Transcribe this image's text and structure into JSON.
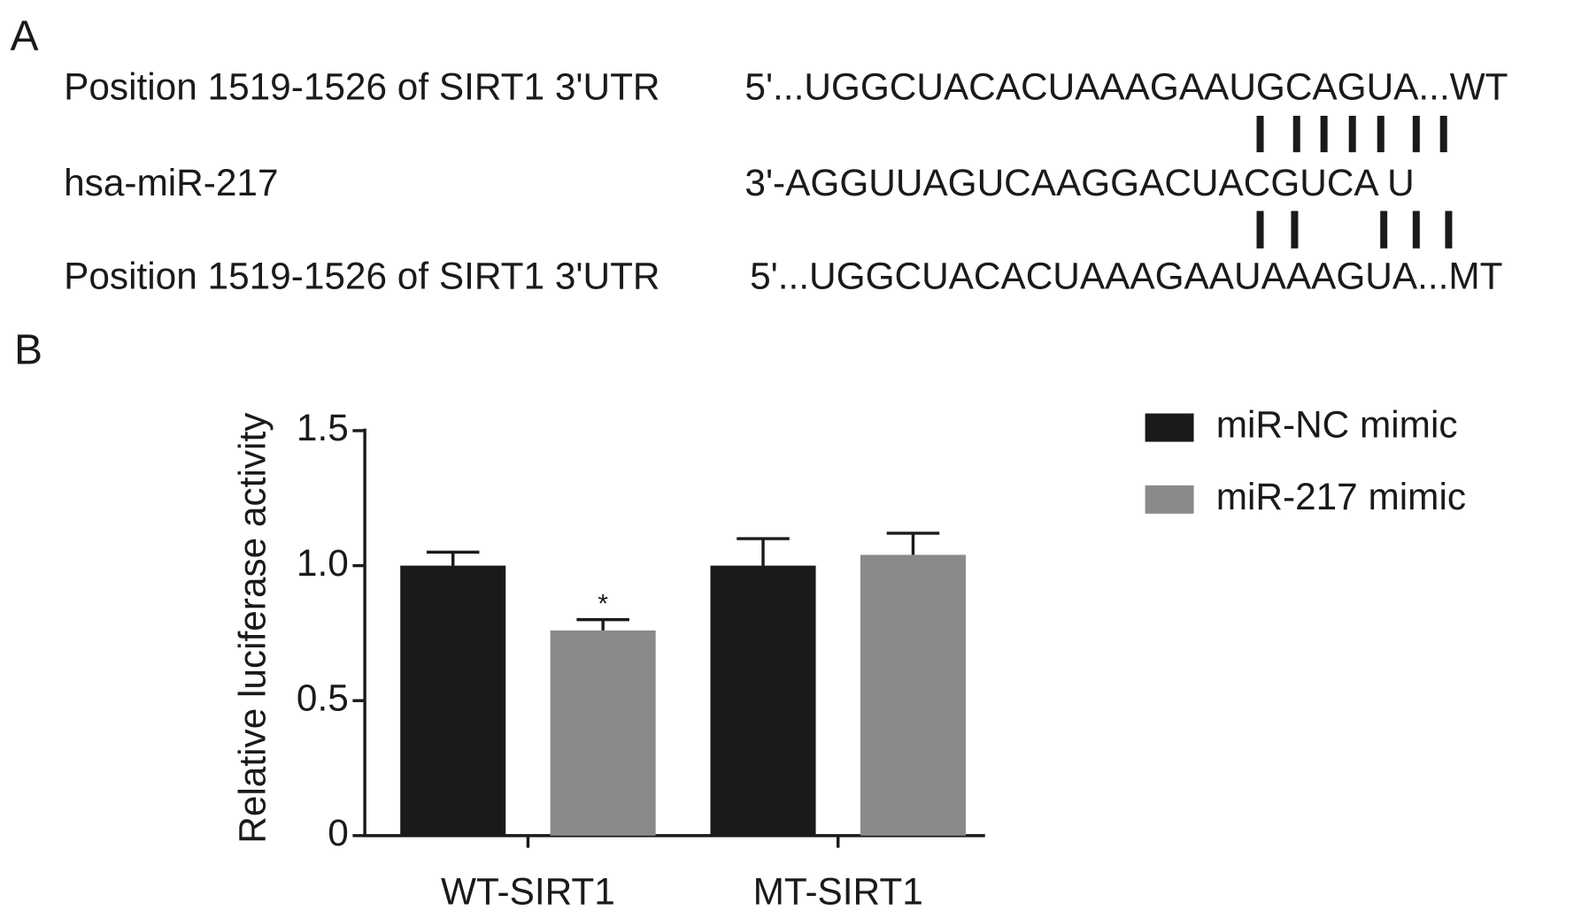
{
  "panel_a": {
    "label": "A",
    "rows": [
      {
        "name": "Position 1519-1526 of SIRT1 3'UTR",
        "sequence": "5'...UGGCUACACUAAAGAAUGCAGUA...WT"
      },
      {
        "name": "hsa-miR-217",
        "sequence": "3'-AGGUUAGUCAAGGACUACGUCA U"
      },
      {
        "name": "Position 1519-1526 of SIRT1 3'UTR",
        "sequence": "5'...UGGCUACACUAAAGAAUAAAGUA...MT"
      }
    ]
  },
  "chart_data": {
    "type": "bar",
    "panel_label": "B",
    "ylabel": "Relative luciferase activity",
    "categories": [
      "WT-SIRT1",
      "MT-SIRT1"
    ],
    "series": [
      {
        "name": "miR-NC mimic",
        "color": "#1a1a1a",
        "values": [
          1.0,
          1.0
        ],
        "errors": [
          0.05,
          0.1
        ]
      },
      {
        "name": "miR-217 mimic",
        "color": "#8a8a8a",
        "values": [
          0.76,
          1.04
        ],
        "errors": [
          0.04,
          0.08
        ]
      }
    ],
    "annotation": "*",
    "ylim": [
      0,
      1.5
    ],
    "yticks": [
      0,
      {
        "value": 0.5,
        "label": "0.5"
      },
      {
        "value": 1,
        "label": "1.0"
      },
      {
        "value": 1.5,
        "label": "1.5"
      }
    ],
    "legend": "right"
  }
}
